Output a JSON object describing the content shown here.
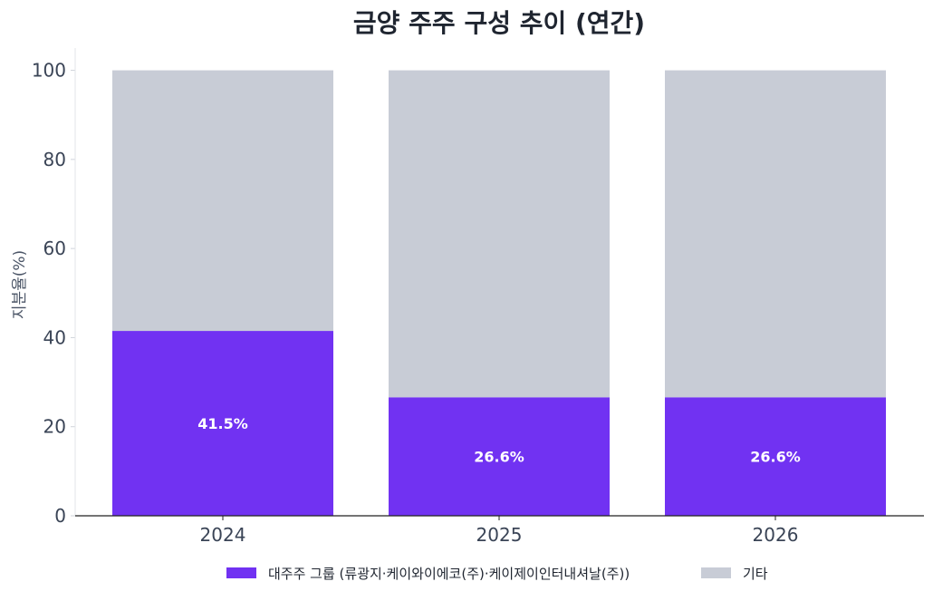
{
  "chart_data": {
    "type": "bar",
    "stacked": true,
    "title": "금양 주주 구성 추이 (연간)",
    "xlabel": "",
    "ylabel": "지분율(%)",
    "ylim": [
      0,
      105
    ],
    "yticks": [
      0,
      20,
      40,
      60,
      80,
      100
    ],
    "categories": [
      "2024",
      "2025",
      "2026"
    ],
    "series": [
      {
        "name": "대주주 그룹 (류광지·케이와이에코(주)·케이제이인터내셔날(주))",
        "values": [
          41.5,
          26.6,
          26.6
        ],
        "labels": [
          "41.5%",
          "26.6%",
          "26.6%"
        ],
        "color": "#7132f2"
      },
      {
        "name": "기타",
        "values": [
          58.5,
          73.4,
          73.4
        ],
        "color": "#c8ccd6"
      }
    ],
    "grid": false,
    "legend": "bottom-center"
  }
}
